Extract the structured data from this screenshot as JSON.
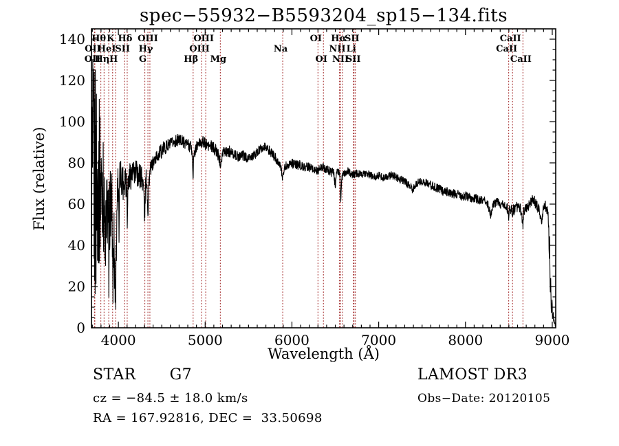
{
  "chart_data": {
    "type": "line",
    "title": "spec−55932−B5593204_sp15−134.fits",
    "xlabel": "Wavelength (Å)",
    "ylabel": "Flux (relative)",
    "xlim": [
      3690,
      9040
    ],
    "ylim": [
      0,
      145
    ],
    "x_major_ticks": [
      4000,
      5000,
      6000,
      7000,
      8000,
      9000
    ],
    "x_minor_step": 100,
    "y_major_ticks": [
      0,
      20,
      40,
      60,
      80,
      100,
      120,
      140
    ],
    "y_minor_step": 5,
    "grid": false,
    "curve_color": "#000000",
    "line_marker_color": "#a52e2e",
    "spectral_lines": [
      {
        "label": "OII",
        "wavelength": 3726.0,
        "row": 3
      },
      {
        "label": "OII",
        "wavelength": 3728.8,
        "row": 2
      },
      {
        "label": "Hθ",
        "wavelength": 3798.0,
        "row": 1
      },
      {
        "label": "Hη",
        "wavelength": 3835.4,
        "row": 3
      },
      {
        "label": "HeI",
        "wavelength": 3889.0,
        "row": 2
      },
      {
        "label": "K",
        "wavelength": 3933.7,
        "row": 1
      },
      {
        "label": "H",
        "wavelength": 3968.5,
        "row": 3
      },
      {
        "label": "SII",
        "wavelength": 4072.0,
        "row": 2
      },
      {
        "label": "Hδ",
        "wavelength": 4101.7,
        "row": 1
      },
      {
        "label": "G",
        "wavelength": 4305.0,
        "row": 3
      },
      {
        "label": "Hγ",
        "wavelength": 4340.5,
        "row": 2
      },
      {
        "label": "OIII",
        "wavelength": 4363.2,
        "row": 1
      },
      {
        "label": "Hβ",
        "wavelength": 4861.3,
        "row": 3
      },
      {
        "label": "OIII",
        "wavelength": 4959.0,
        "row": 2
      },
      {
        "label": "OIII",
        "wavelength": 5006.8,
        "row": 1
      },
      {
        "label": "Mg",
        "wavelength": 5175.0,
        "row": 3
      },
      {
        "label": "Na",
        "wavelength": 5894.0,
        "row": 2
      },
      {
        "label": "OI",
        "wavelength": 6300.2,
        "row": 1
      },
      {
        "label": "OI",
        "wavelength": 6363.0,
        "row": 3
      },
      {
        "label": "NII",
        "wavelength": 6548.0,
        "row": 2
      },
      {
        "label": "Hα",
        "wavelength": 6562.8,
        "row": 1
      },
      {
        "label": "NII",
        "wavelength": 6583.4,
        "row": 3
      },
      {
        "label": "Li",
        "wavelength": 6707.0,
        "row": 2
      },
      {
        "label": "SII",
        "wavelength": 6716.0,
        "row": 1
      },
      {
        "label": "SII",
        "wavelength": 6730.8,
        "row": 3
      },
      {
        "label": "CaII",
        "wavelength": 8498.0,
        "row": 2
      },
      {
        "label": "CaII",
        "wavelength": 8542.1,
        "row": 1
      },
      {
        "label": "CaII",
        "wavelength": 8662.1,
        "row": 3
      }
    ],
    "series": [
      {
        "name": "spectrum",
        "points": [
          [
            3690,
            70
          ],
          [
            3745,
            70
          ],
          [
            3795,
            70
          ],
          [
            3820,
            70
          ],
          [
            3848,
            42
          ],
          [
            3852,
            18
          ],
          [
            3856,
            56
          ],
          [
            3884,
            60
          ],
          [
            3888,
            30
          ],
          [
            3892,
            12
          ],
          [
            3896,
            52
          ],
          [
            3910,
            62
          ],
          [
            3920,
            60
          ],
          [
            3926,
            58
          ],
          [
            3930,
            40
          ],
          [
            3934,
            36
          ],
          [
            3938,
            14
          ],
          [
            3942,
            48
          ],
          [
            3946,
            26
          ],
          [
            3950,
            54
          ],
          [
            3954,
            16
          ],
          [
            3958,
            40
          ],
          [
            3962,
            8
          ],
          [
            3966,
            34
          ],
          [
            3970,
            16
          ],
          [
            3974,
            44
          ],
          [
            3978,
            30
          ],
          [
            3982,
            56
          ],
          [
            3988,
            66
          ],
          [
            3996,
            72
          ],
          [
            4004,
            68
          ],
          [
            4008,
            30
          ],
          [
            4012,
            66
          ],
          [
            4020,
            74
          ],
          [
            4040,
            73
          ],
          [
            4060,
            70
          ],
          [
            4080,
            74
          ],
          [
            4096,
            70
          ],
          [
            4102,
            54
          ],
          [
            4108,
            68
          ],
          [
            4130,
            74
          ],
          [
            4160,
            74
          ],
          [
            4200,
            75
          ],
          [
            4240,
            74
          ],
          [
            4280,
            73
          ],
          [
            4296,
            64
          ],
          [
            4302,
            50
          ],
          [
            4308,
            62
          ],
          [
            4316,
            72
          ],
          [
            4326,
            72
          ],
          [
            4336,
            62
          ],
          [
            4341,
            56
          ],
          [
            4348,
            66
          ],
          [
            4356,
            73
          ],
          [
            4370,
            77
          ],
          [
            4400,
            80
          ],
          [
            4440,
            83
          ],
          [
            4480,
            85
          ],
          [
            4520,
            87
          ],
          [
            4560,
            88
          ],
          [
            4600,
            89
          ],
          [
            4640,
            90
          ],
          [
            4680,
            91
          ],
          [
            4720,
            91
          ],
          [
            4760,
            90
          ],
          [
            4800,
            89
          ],
          [
            4840,
            88
          ],
          [
            4855,
            80
          ],
          [
            4861,
            73
          ],
          [
            4868,
            82
          ],
          [
            4890,
            87
          ],
          [
            4920,
            89
          ],
          [
            4950,
            90
          ],
          [
            4980,
            90
          ],
          [
            5010,
            89
          ],
          [
            5040,
            88
          ],
          [
            5070,
            88
          ],
          [
            5100,
            87
          ],
          [
            5130,
            86
          ],
          [
            5165,
            82
          ],
          [
            5178,
            80
          ],
          [
            5195,
            84
          ],
          [
            5220,
            86
          ],
          [
            5260,
            86
          ],
          [
            5300,
            85
          ],
          [
            5340,
            84
          ],
          [
            5380,
            83
          ],
          [
            5420,
            84
          ],
          [
            5460,
            83
          ],
          [
            5500,
            82
          ],
          [
            5540,
            83
          ],
          [
            5580,
            84
          ],
          [
            5620,
            86
          ],
          [
            5660,
            87
          ],
          [
            5700,
            88
          ],
          [
            5740,
            86
          ],
          [
            5780,
            84
          ],
          [
            5820,
            82
          ],
          [
            5850,
            80
          ],
          [
            5880,
            76
          ],
          [
            5894,
            73
          ],
          [
            5908,
            77
          ],
          [
            5940,
            79
          ],
          [
            5990,
            80
          ],
          [
            6040,
            79
          ],
          [
            6090,
            79
          ],
          [
            6140,
            78
          ],
          [
            6190,
            78
          ],
          [
            6240,
            77
          ],
          [
            6290,
            76
          ],
          [
            6320,
            77
          ],
          [
            6360,
            78
          ],
          [
            6400,
            77
          ],
          [
            6440,
            76
          ],
          [
            6480,
            75
          ],
          [
            6500,
            69
          ],
          [
            6510,
            75
          ],
          [
            6530,
            76
          ],
          [
            6550,
            74
          ],
          [
            6558,
            68
          ],
          [
            6563,
            59
          ],
          [
            6568,
            68
          ],
          [
            6578,
            73
          ],
          [
            6600,
            75
          ],
          [
            6650,
            76
          ],
          [
            6700,
            74
          ],
          [
            6750,
            75
          ],
          [
            6800,
            74
          ],
          [
            6850,
            75
          ],
          [
            6900,
            74
          ],
          [
            6950,
            73
          ],
          [
            7000,
            74
          ],
          [
            7050,
            73
          ],
          [
            7100,
            73
          ],
          [
            7150,
            74
          ],
          [
            7200,
            73
          ],
          [
            7250,
            72
          ],
          [
            7300,
            71
          ],
          [
            7350,
            69
          ],
          [
            7390,
            67
          ],
          [
            7420,
            69
          ],
          [
            7460,
            71
          ],
          [
            7510,
            71
          ],
          [
            7560,
            70
          ],
          [
            7610,
            69
          ],
          [
            7660,
            68
          ],
          [
            7710,
            67
          ],
          [
            7760,
            66
          ],
          [
            7810,
            66
          ],
          [
            7860,
            65
          ],
          [
            7910,
            65
          ],
          [
            7960,
            64
          ],
          [
            8010,
            64
          ],
          [
            8060,
            63
          ],
          [
            8110,
            63
          ],
          [
            8160,
            62
          ],
          [
            8210,
            62
          ],
          [
            8260,
            60
          ],
          [
            8295,
            54
          ],
          [
            8310,
            59
          ],
          [
            8360,
            61
          ],
          [
            8410,
            60
          ],
          [
            8460,
            60
          ],
          [
            8492,
            57
          ],
          [
            8498,
            54
          ],
          [
            8506,
            58
          ],
          [
            8534,
            58
          ],
          [
            8542,
            54
          ],
          [
            8550,
            57
          ],
          [
            8590,
            59
          ],
          [
            8630,
            58
          ],
          [
            8656,
            53
          ],
          [
            8662,
            50
          ],
          [
            8670,
            56
          ],
          [
            8700,
            58
          ],
          [
            8730,
            59
          ],
          [
            8760,
            61
          ],
          [
            8785,
            63
          ],
          [
            8810,
            60
          ],
          [
            8840,
            58
          ],
          [
            8865,
            54
          ],
          [
            8878,
            50
          ],
          [
            8895,
            57
          ],
          [
            8915,
            60
          ],
          [
            8935,
            57
          ],
          [
            8952,
            56
          ],
          [
            8960,
            48
          ],
          [
            8966,
            30
          ],
          [
            8970,
            42
          ],
          [
            8976,
            14
          ],
          [
            8982,
            26
          ],
          [
            8988,
            8
          ],
          [
            8996,
            13
          ],
          [
            9004,
            4
          ],
          [
            9012,
            8
          ],
          [
            9020,
            2
          ],
          [
            9028,
            5
          ],
          [
            9035,
            1
          ]
        ]
      }
    ],
    "noise_segments": [
      [
        3690,
        3748,
        62
      ],
      [
        3748,
        3800,
        42
      ],
      [
        3800,
        3845,
        27
      ],
      [
        3845,
        3930,
        18
      ],
      [
        3930,
        3990,
        9
      ],
      [
        3990,
        4130,
        9
      ],
      [
        4130,
        4290,
        7
      ],
      [
        4290,
        4365,
        5
      ],
      [
        4365,
        4600,
        3.5
      ],
      [
        4600,
        5300,
        3
      ],
      [
        5300,
        6500,
        2.4
      ],
      [
        6500,
        7600,
        2
      ],
      [
        7600,
        8480,
        2.3
      ],
      [
        8480,
        8955,
        2.8
      ],
      [
        8955,
        9036,
        3
      ]
    ]
  },
  "annotations": {
    "class_label": "STAR",
    "subclass": "G7",
    "cz": "cz = −84.5 ± 18.0 km/s",
    "radec": "RA = 167.92816, DEC =  33.50698",
    "survey": "LAMOST DR3",
    "obs_date": "Obs−Date: 20120105"
  }
}
